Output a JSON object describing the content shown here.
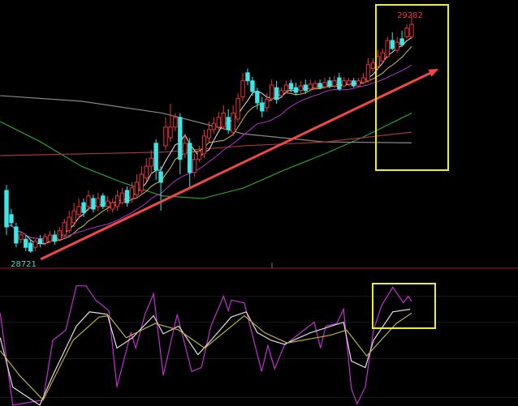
{
  "chart_data": [
    {
      "type": "candlestick",
      "title": "",
      "colors": {
        "up": "#e8343a",
        "down": "#3fe6e6",
        "ma5": "#e8e8e8",
        "ma10": "#c8c24a",
        "ma20": "#b030c8"
      },
      "annotations": {
        "high_label": "29282",
        "low_label": "28721",
        "high_color": "#e8343a",
        "low_color": "#4fd8c8",
        "trend_arrow": {
          "from": [
            7.1,
            28706
          ],
          "to": [
            89.6,
            29154
          ],
          "color": "#f04848"
        },
        "highlight_box_color": "#f0f020"
      },
      "candles_ohlc": [
        [
          28868,
          28782,
          28881,
          28763
        ],
        [
          28811,
          28792,
          28824,
          28782
        ],
        [
          28782,
          28744,
          28792,
          28734
        ],
        [
          28753,
          28763,
          28773,
          28744
        ],
        [
          28753,
          28734,
          28763,
          28725
        ],
        [
          28744,
          28725,
          28753,
          28721
        ],
        [
          28734,
          28748,
          28753,
          28725
        ],
        [
          28753,
          28744,
          28763,
          28734
        ],
        [
          28744,
          28759,
          28767,
          28738
        ],
        [
          28748,
          28763,
          28773,
          28744
        ],
        [
          28763,
          28748,
          28773,
          28740
        ],
        [
          28753,
          28773,
          28782,
          28748
        ],
        [
          28763,
          28792,
          28801,
          28759
        ],
        [
          28773,
          28805,
          28820,
          28767
        ],
        [
          28792,
          28820,
          28839,
          28782
        ],
        [
          28811,
          28830,
          28849,
          28801
        ],
        [
          28839,
          28816,
          28849,
          28805
        ],
        [
          28830,
          28855,
          28868,
          28820
        ],
        [
          28849,
          28824,
          28858,
          28816
        ],
        [
          28830,
          28849,
          28862,
          28820
        ],
        [
          28855,
          28830,
          28862,
          28824
        ],
        [
          28830,
          28843,
          28855,
          28816
        ],
        [
          28824,
          28839,
          28849,
          28816
        ],
        [
          28830,
          28855,
          28868,
          28820
        ],
        [
          28839,
          28862,
          28874,
          28835
        ],
        [
          28868,
          28839,
          28877,
          28830
        ],
        [
          28849,
          28874,
          28887,
          28839
        ],
        [
          28858,
          28887,
          28906,
          28849
        ],
        [
          28868,
          28906,
          28925,
          28858
        ],
        [
          28897,
          28925,
          28944,
          28887
        ],
        [
          28925,
          28944,
          28963,
          28906
        ],
        [
          28979,
          28916,
          28988,
          28893
        ],
        [
          28912,
          28887,
          28925,
          28820
        ],
        [
          28973,
          29017,
          29040,
          28963
        ],
        [
          28992,
          29017,
          29072,
          28982
        ],
        [
          29017,
          29040,
          29050,
          29007
        ],
        [
          29040,
          28941,
          29050,
          28906
        ],
        [
          28954,
          28979,
          29001,
          28944
        ],
        [
          28979,
          28910,
          28992,
          28872
        ],
        [
          28910,
          28941,
          28954,
          28900
        ],
        [
          28941,
          28960,
          28973,
          28935
        ],
        [
          28954,
          28996,
          29011,
          28944
        ],
        [
          28992,
          29011,
          29030,
          28982
        ],
        [
          29011,
          29026,
          29040,
          29001
        ],
        [
          29017,
          29040,
          29053,
          29011
        ],
        [
          29017,
          29050,
          29069,
          29011
        ],
        [
          29040,
          29011,
          29059,
          29001
        ],
        [
          29005,
          29050,
          29069,
          28996
        ],
        [
          29036,
          29084,
          29097,
          29030
        ],
        [
          29088,
          29126,
          29145,
          29078
        ],
        [
          29145,
          29126,
          29155,
          29116
        ],
        [
          29126,
          29101,
          29135,
          29091
        ],
        [
          29101,
          29074,
          29110,
          29059
        ],
        [
          29074,
          29055,
          29088,
          29040
        ],
        [
          29063,
          29082,
          29097,
          29053
        ],
        [
          29084,
          29116,
          29129,
          29078
        ],
        [
          29110,
          29082,
          29126,
          29072
        ],
        [
          29091,
          29103,
          29110,
          29088
        ],
        [
          29103,
          29116,
          29126,
          29097
        ],
        [
          29120,
          29107,
          29129,
          29099
        ],
        [
          29110,
          29099,
          29122,
          29091
        ],
        [
          29103,
          29114,
          29126,
          29097
        ],
        [
          29116,
          29103,
          29129,
          29095
        ],
        [
          29107,
          29118,
          29129,
          29101
        ],
        [
          29110,
          29120,
          29126,
          29105
        ],
        [
          29120,
          29110,
          29129,
          29107
        ],
        [
          29112,
          29122,
          29133,
          29107
        ],
        [
          29126,
          29114,
          29135,
          29108
        ],
        [
          29114,
          29126,
          29137,
          29110
        ],
        [
          29133,
          29107,
          29145,
          29103
        ],
        [
          29114,
          29126,
          29135,
          29110
        ],
        [
          29118,
          29126,
          29133,
          29114
        ],
        [
          29126,
          29114,
          29133,
          29110
        ],
        [
          29114,
          29126,
          29133,
          29110
        ],
        [
          29122,
          29133,
          29145,
          29118
        ],
        [
          29126,
          29164,
          29179,
          29122
        ],
        [
          29155,
          29168,
          29179,
          29148
        ],
        [
          29160,
          29183,
          29198,
          29154
        ],
        [
          29173,
          29192,
          29202,
          29168
        ],
        [
          29183,
          29221,
          29230,
          29179
        ],
        [
          29221,
          29202,
          29240,
          29198
        ],
        [
          29198,
          29217,
          29230,
          29192
        ],
        [
          29225,
          29211,
          29244,
          29206
        ],
        [
          29230,
          29250,
          29259,
          29225
        ],
        [
          29230,
          29259,
          29282,
          29225
        ]
      ],
      "long_averages": [
        {
          "color": "#2fa02f",
          "points": [
            [
              -1.3,
              29030
            ],
            [
              7.1,
              28982
            ],
            [
              15.5,
              28925
            ],
            [
              23.9,
              28887
            ],
            [
              32.3,
              28855
            ],
            [
              40.7,
              28849
            ],
            [
              49.2,
              28874
            ],
            [
              57.6,
              28916
            ],
            [
              66,
              28954
            ],
            [
              74.4,
              28996
            ],
            [
              84,
              29050
            ]
          ]
        },
        {
          "color": "#8a8a80",
          "points": [
            [
              -1.3,
              29091
            ],
            [
              15.5,
              29078
            ],
            [
              32.3,
              29050
            ],
            [
              49.2,
              29001
            ],
            [
              66,
              28982
            ],
            [
              84,
              28980
            ]
          ]
        },
        {
          "color": "#a83838",
          "points": [
            [
              -1.3,
              28950
            ],
            [
              32.3,
              28958
            ],
            [
              49.2,
              28973
            ],
            [
              66,
              28982
            ],
            [
              84,
              29005
            ]
          ]
        }
      ],
      "ylim": [
        28690,
        29300
      ]
    },
    {
      "type": "line",
      "title": "",
      "ylim": [
        0,
        100
      ],
      "series": [
        {
          "color": "#c030d0",
          "points": [
            [
              -1.3,
              71
            ],
            [
              1.3,
              0
            ],
            [
              7.6,
              4
            ],
            [
              9.6,
              50
            ],
            [
              12.3,
              58
            ],
            [
              14.5,
              92
            ],
            [
              16.5,
              92
            ],
            [
              18.5,
              81
            ],
            [
              21.2,
              73
            ],
            [
              22.9,
              14
            ],
            [
              25.8,
              56
            ],
            [
              26.8,
              44
            ],
            [
              28.8,
              71
            ],
            [
              30.5,
              86
            ],
            [
              32.5,
              23
            ],
            [
              35.4,
              70
            ],
            [
              38.4,
              26
            ],
            [
              40.4,
              29
            ],
            [
              42.4,
              61
            ],
            [
              45,
              84
            ],
            [
              46,
              73
            ],
            [
              46.6,
              81
            ],
            [
              49.3,
              79
            ],
            [
              52.9,
              26
            ],
            [
              54.2,
              46
            ],
            [
              55.6,
              28
            ],
            [
              57.6,
              46
            ],
            [
              60.3,
              54
            ],
            [
              63.8,
              64
            ],
            [
              65.1,
              44
            ],
            [
              66.2,
              61
            ],
            [
              68.5,
              63
            ],
            [
              69.9,
              74
            ],
            [
              71.5,
              13
            ],
            [
              72.7,
              1
            ],
            [
              74.4,
              14
            ],
            [
              76.1,
              58
            ],
            [
              77.8,
              77
            ],
            [
              80.1,
              91
            ],
            [
              82.3,
              79
            ],
            [
              83.3,
              84
            ],
            [
              84,
              80
            ]
          ]
        },
        {
          "color": "#e0e0e0",
          "points": [
            [
              -1.3,
              52
            ],
            [
              1.3,
              14
            ],
            [
              6.9,
              0
            ],
            [
              9.6,
              23
            ],
            [
              14.5,
              61
            ],
            [
              17.2,
              72
            ],
            [
              19.2,
              71
            ],
            [
              20.9,
              70
            ],
            [
              22.9,
              44
            ],
            [
              26.1,
              52
            ],
            [
              30.5,
              69
            ],
            [
              32.5,
              55
            ],
            [
              35.7,
              61
            ],
            [
              39.7,
              39
            ],
            [
              42.4,
              50
            ],
            [
              46.6,
              68
            ],
            [
              49.7,
              72
            ],
            [
              52,
              56
            ],
            [
              54.9,
              50
            ],
            [
              57.6,
              47
            ],
            [
              63.1,
              56
            ],
            [
              69.9,
              64
            ],
            [
              71.5,
              34
            ],
            [
              74.4,
              29
            ],
            [
              76.1,
              50
            ],
            [
              80.1,
              72
            ],
            [
              83.7,
              74
            ]
          ]
        },
        {
          "color": "#b8b040",
          "points": [
            [
              -1.3,
              42
            ],
            [
              2.7,
              23
            ],
            [
              7.6,
              4
            ],
            [
              13.8,
              50
            ],
            [
              19.2,
              68
            ],
            [
              21.2,
              69
            ],
            [
              24.8,
              52
            ],
            [
              30.8,
              63
            ],
            [
              35.7,
              58
            ],
            [
              41.1,
              44
            ],
            [
              49.3,
              69
            ],
            [
              53.5,
              56
            ],
            [
              58.2,
              48
            ],
            [
              67.2,
              54
            ],
            [
              70.5,
              58
            ],
            [
              74.7,
              38
            ],
            [
              80.8,
              63
            ],
            [
              84,
              71
            ]
          ]
        }
      ]
    }
  ]
}
